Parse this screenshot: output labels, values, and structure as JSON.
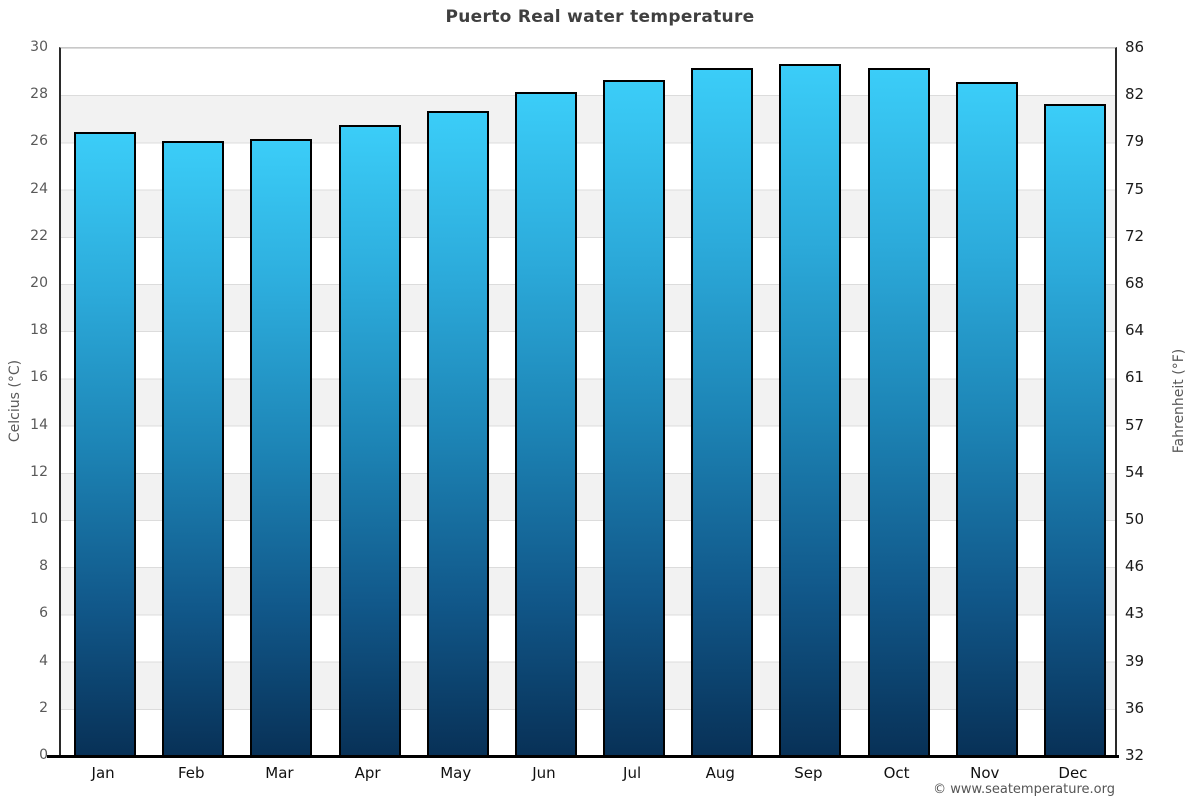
{
  "title": "Puerto Real water temperature",
  "credit": "© www.seatemperature.org",
  "axes": {
    "left_label": "Celcius (°C)",
    "right_label": "Fahrenheit (°F)"
  },
  "chart_data": {
    "type": "bar",
    "title": "Puerto Real water temperature",
    "categories": [
      "Jan",
      "Feb",
      "Mar",
      "Apr",
      "May",
      "Jun",
      "Jul",
      "Aug",
      "Sep",
      "Oct",
      "Nov",
      "Dec"
    ],
    "values": [
      26.4,
      26.0,
      26.1,
      26.7,
      27.3,
      28.1,
      28.6,
      29.1,
      29.3,
      29.1,
      28.5,
      27.6
    ],
    "unit": "°C",
    "xlabel": "",
    "ylabel": "Celcius (°C)",
    "ylabel_right": "Fahrenheit (°F)",
    "ylim": [
      0,
      30
    ],
    "ytick_step_celsius": 2,
    "yticks_celsius": [
      30,
      28,
      26,
      24,
      22,
      20,
      18,
      16,
      14,
      12,
      10,
      8,
      6,
      4,
      2,
      0
    ],
    "yticks_fahrenheit": [
      86,
      82,
      79,
      75,
      72,
      68,
      64,
      61,
      57,
      54,
      50,
      46,
      43,
      39,
      36,
      32
    ],
    "grid": "horizontal-gridlines-with-alternating-bands",
    "legend": "none",
    "bar_color_top": "#3bcdf8",
    "bar_color_bottom": "#083157",
    "bar_border_color": "#000000",
    "band_color": "#f2f2f2",
    "gridline_color": "#dcdcdc"
  }
}
